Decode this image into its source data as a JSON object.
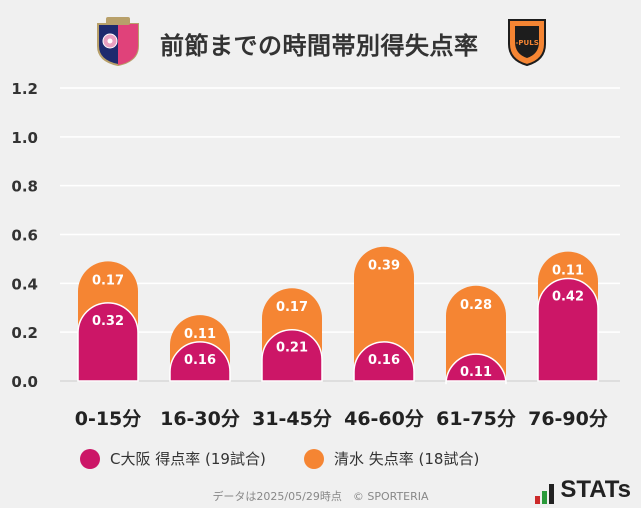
{
  "header": {
    "title": "前節までの時間帯別得失点率",
    "left_logo": "cerezo-osaka-crest",
    "right_logo": "shimizu-s-pulse-crest",
    "right_logo_text": "S-PULSE"
  },
  "chart_data": {
    "type": "bar",
    "stacked": true,
    "categories": [
      "0-15分",
      "16-30分",
      "31-45分",
      "46-60分",
      "61-75分",
      "76-90分"
    ],
    "series": [
      {
        "name": "C大阪 得点率 (19試合)",
        "values": [
          0.32,
          0.16,
          0.21,
          0.16,
          0.11,
          0.42
        ],
        "color": "#cc1667"
      },
      {
        "name": "清水 失点率 (18試合)",
        "values": [
          0.17,
          0.11,
          0.17,
          0.39,
          0.28,
          0.11
        ],
        "color": "#f58533"
      }
    ],
    "ylim": [
      0,
      1.2
    ],
    "yticks": [
      "0.0",
      "0.2",
      "0.4",
      "0.6",
      "0.8",
      "1.0",
      "1.2"
    ],
    "grid": true,
    "legend_position": "bottom-left"
  },
  "legend": {
    "items": [
      {
        "label": "C大阪 得点率 (19試合)",
        "color": "#cc1667"
      },
      {
        "label": "清水 失点率 (18試合)",
        "color": "#f58533"
      }
    ]
  },
  "footer": {
    "note": "データは2025/05/29時点　© SPORTERIA",
    "brand": "STATs"
  }
}
